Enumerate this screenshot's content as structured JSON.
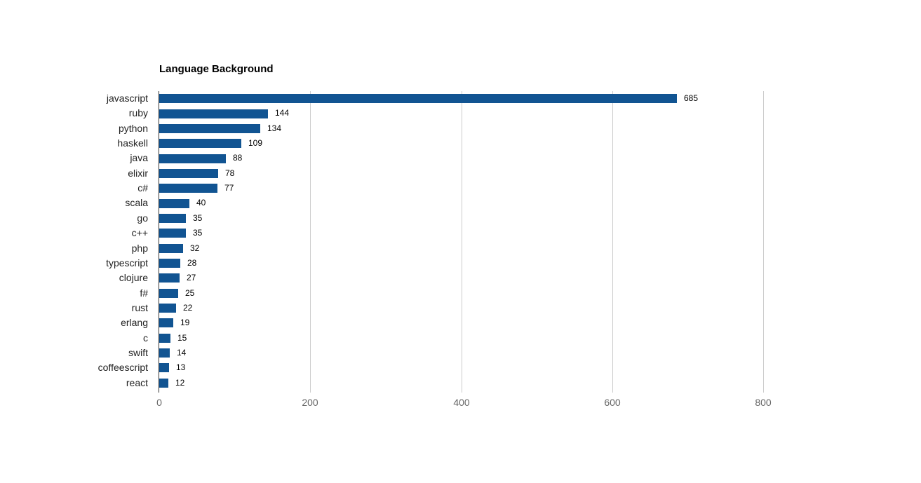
{
  "chart_data": {
    "type": "bar",
    "orientation": "horizontal",
    "title": "Language Background",
    "categories": [
      "javascript",
      "ruby",
      "python",
      "haskell",
      "java",
      "elixir",
      "c#",
      "scala",
      "go",
      "c++",
      "php",
      "typescript",
      "clojure",
      "f#",
      "rust",
      "erlang",
      "c",
      "swift",
      "coffeescript",
      "react"
    ],
    "values": [
      685,
      144,
      134,
      109,
      88,
      78,
      77,
      40,
      35,
      35,
      32,
      28,
      27,
      25,
      22,
      19,
      15,
      14,
      13,
      12
    ],
    "x_ticks": [
      0,
      200,
      400,
      600,
      800
    ],
    "xlim": [
      0,
      900
    ],
    "grid": true,
    "legend": "none",
    "value_labels_shown": true,
    "colors": {
      "bar": "#115492",
      "gridline": "#cccccc",
      "axis_line": "#333333",
      "tick_label": "#666666",
      "category_label": "#222222",
      "value_label": "#000000",
      "title": "#000000",
      "background": "#ffffff"
    }
  }
}
